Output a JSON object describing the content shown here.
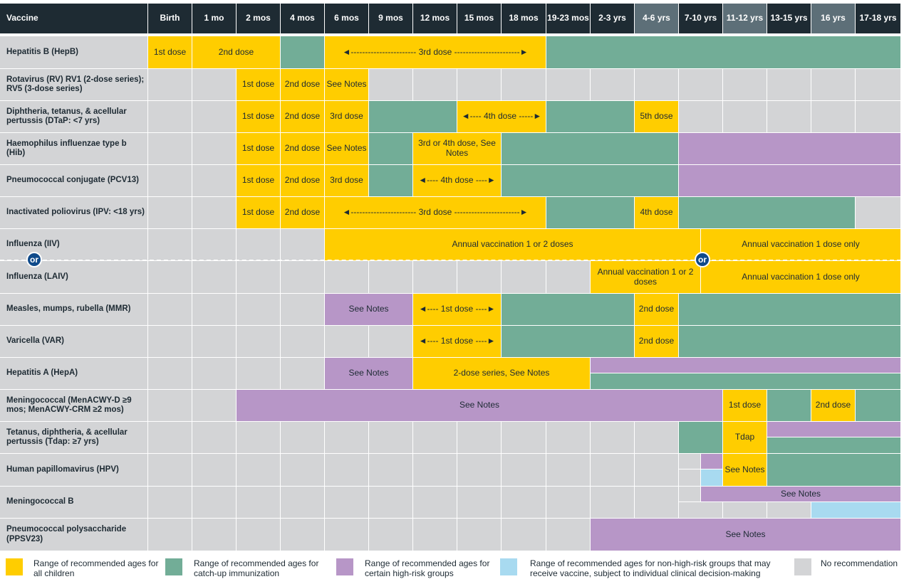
{
  "header": {
    "vaccine_label": "Vaccine",
    "ages": [
      "Birth",
      "1 mo",
      "2 mos",
      "4 mos",
      "6 mos",
      "9 mos",
      "12 mos",
      "15 mos",
      "18 mos",
      "19-23 mos",
      "2-3 yrs",
      "4-6 yrs",
      "7-10 yrs",
      "11-12 yrs",
      "13-15 yrs",
      "16 yrs",
      "17-18 yrs"
    ]
  },
  "vaccines": [
    "Hepatitis B (HepB)",
    "Rotavirus (RV) RV1 (2-dose series); RV5 (3-dose series)",
    "Diphtheria, tetanus, & acellular pertussis (DTaP: <7 yrs)",
    "Haemophilus influenzae type b (Hib)",
    "Pneumococcal conjugate (PCV13)",
    "Inactivated poliovirus (IPV: <18 yrs)",
    "Influenza (IIV)",
    "Influenza (LAIV)",
    "Measles, mumps, rubella (MMR)",
    "Varicella (VAR)",
    "Hepatitis A (HepA)",
    "Meningococcal (MenACWY-D ≥9 mos; MenACWY-CRM ≥2 mos)",
    "Tetanus, diphtheria, & acellular pertussis (Tdap: ≥7 yrs)",
    "Human papillomavirus (HPV)",
    "Meningococcal B",
    "Pneumococcal polysaccharide (PPSV23)"
  ],
  "labels": {
    "dose1": "1st dose",
    "dose2": "2nd dose",
    "dose3": "3rd dose",
    "dose4": "4th dose",
    "dose5": "5th dose",
    "hepb_3rd": "◄----------------------- 3rd dose -----------------------►",
    "dtap_4th": "◄---- 4th dose -----►",
    "hib_34": "3rd or 4th dose, See Notes",
    "pcv_4th": "◄---- 4th dose ----►",
    "ipv_3rd": "◄----------------------- 3rd dose -----------------------►",
    "see_notes": "See Notes",
    "annual_12": "Annual vaccination 1 or 2 doses",
    "annual_1": "Annual vaccination 1 dose only",
    "mmr_1st": "◄---- 1st dose ----►",
    "hepa_series": "2-dose series, See Notes",
    "tdap": "Tdap",
    "or": "or"
  },
  "legend": [
    {
      "color": "#ffcd00",
      "text": "Range of recommended ages for all children"
    },
    {
      "color": "#72ad97",
      "text": "Range of recommended ages for catch-up immunization"
    },
    {
      "color": "#b796c7",
      "text": "Range of recommended ages for certain high-risk groups"
    },
    {
      "color": "#a8daf0",
      "text": "Range of recommended ages for non-high-risk groups that may receive vaccine, subject to individual clinical decision-making"
    },
    {
      "color": "#d3d4d6",
      "text": "No recommendation"
    }
  ],
  "colors": {
    "yellow": "#ffcd00",
    "teal": "#72ad97",
    "purple": "#b796c7",
    "blue": "#a8daf0",
    "grey": "#d3d4d6",
    "header": "#1e2b33",
    "header_alt": "#5d6f78",
    "or_badge": "#0f4a8a"
  }
}
